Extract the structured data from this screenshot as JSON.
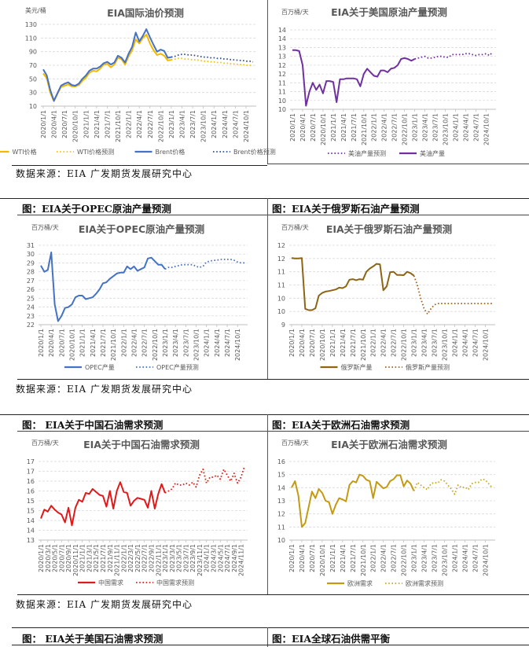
{
  "source_note": "数据来源：EIA  广发期货发展研究中心",
  "sections": [
    {
      "left_header": "图：EIA关于OPEC原油产量预测",
      "right_header": "图：EIA关于俄罗斯石油产量预测"
    },
    {
      "left_header": "图：  EIA关于中国石油需求预测",
      "right_header": "图：EIA关于欧洲石油需求预测"
    },
    {
      "left_header": "图：  EIA关于美国石油需求预测",
      "right_header": "图：EIA全球石油供需平衡"
    }
  ],
  "chart_data": [
    {
      "type": "line",
      "title": "EIA国际油价预测",
      "unit": "美元/桶",
      "ylim": [
        10,
        130
      ],
      "yticks": [
        "10",
        "30",
        "50",
        "70",
        "90",
        "110",
        "130"
      ],
      "frequency": "monthly",
      "grid": true,
      "legend": "bottom",
      "xticks": [
        "2020/1/1",
        "2020/4/1",
        "2020/7/1",
        "2020/10/1",
        "2021/1/1",
        "2021/4/1",
        "2021/7/1",
        "2021/10/1",
        "2022/1/1",
        "2022/4/1",
        "2022/7/1",
        "2022/10/1",
        "2023/1/1",
        "2023/4/1",
        "2023/7/1",
        "2023/10/1",
        "2024/1/1",
        "2024/4/1",
        "2024/7/1",
        "2024/10/1"
      ],
      "series": [
        {
          "name": "WTI价格",
          "start": "2020/1",
          "style": "solid",
          "color": "#f5b800",
          "values": [
            58,
            51,
            29,
            17,
            28,
            38,
            40,
            42,
            39,
            39,
            41,
            47,
            52,
            59,
            62,
            61,
            65,
            71,
            72,
            67,
            71,
            81,
            79,
            71,
            83,
            92,
            108,
            102,
            110,
            115,
            102,
            92,
            85,
            87,
            84,
            77,
            78
          ]
        },
        {
          "name": "WTI价格预测",
          "start": "2023/1",
          "style": "dotted",
          "color": "#f5c400",
          "values": [
            78,
            79,
            80,
            80,
            79,
            79,
            78,
            78,
            77,
            76,
            76,
            75,
            75,
            74,
            74,
            73,
            73,
            72,
            72,
            71,
            71,
            70,
            70,
            69
          ]
        },
        {
          "name": "Brent价格",
          "start": "2020/1",
          "style": "solid",
          "color": "#4472c4",
          "values": [
            64,
            55,
            33,
            18,
            29,
            40,
            43,
            45,
            41,
            40,
            43,
            50,
            55,
            62,
            65,
            65,
            68,
            73,
            75,
            71,
            74,
            84,
            81,
            74,
            87,
            97,
            118,
            105,
            113,
            123,
            111,
            100,
            90,
            93,
            91,
            81,
            82
          ]
        },
        {
          "name": "Brent价格预测",
          "start": "2023/1",
          "style": "dotted",
          "color": "#2f4f8f",
          "values": [
            82,
            83,
            85,
            86,
            86,
            85,
            85,
            84,
            83,
            82,
            82,
            81,
            81,
            80,
            80,
            79,
            79,
            78,
            78,
            77,
            77,
            76,
            76,
            75
          ]
        }
      ]
    },
    {
      "type": "line",
      "title": "EIA关于美国原油产量预测",
      "unit": "百万桶/天",
      "ylim": [
        9.5,
        14
      ],
      "yticks": [
        "10",
        "10",
        "11",
        "11",
        "12",
        "12",
        "13",
        "13",
        "14",
        "14"
      ],
      "frequency": "monthly",
      "grid": true,
      "legend": "bottom",
      "xticks": [
        "2020/1/1",
        "2020/4/1",
        "2020/7/1",
        "2020/10/1",
        "2021/1/1",
        "2021/4/1",
        "2021/7/1",
        "2021/10/1",
        "2022/1/1",
        "2022/4/1",
        "2022/7/1",
        "2022/10/1",
        "2023/1/1",
        "2023/4/1",
        "2023/7/1",
        "2023/10/1",
        "2024/1/1",
        "2024/4/1",
        "2024/7/1",
        "2024/10/1"
      ],
      "series": [
        {
          "name": "美油产量预测",
          "start": "2023/1",
          "style": "dotted",
          "color": "#7030a0",
          "values": [
            12.35,
            12.4,
            12.45,
            12.5,
            12.4,
            12.4,
            12.45,
            12.5,
            12.5,
            12.45,
            12.45,
            12.6,
            12.6,
            12.6,
            12.6,
            12.65,
            12.65,
            12.6,
            12.55,
            12.6,
            12.6,
            12.65,
            12.55,
            12.75
          ]
        },
        {
          "name": "美油产量",
          "start": "2020/1",
          "style": "solid",
          "color": "#7030a0",
          "values": [
            12.85,
            12.85,
            12.8,
            12.0,
            9.7,
            10.5,
            11.0,
            10.6,
            10.9,
            10.4,
            11.1,
            11.1,
            11.05,
            9.9,
            11.2,
            11.2,
            11.25,
            11.25,
            11.25,
            11.2,
            10.8,
            11.5,
            11.8,
            11.6,
            11.4,
            11.35,
            11.7,
            11.7,
            11.6,
            11.8,
            11.85,
            12.0,
            12.35,
            12.4,
            12.35,
            12.25,
            12.35
          ]
        }
      ]
    },
    {
      "type": "line",
      "title": "EIA关于OPEC原油产量预测",
      "unit": "百万桶/天",
      "ylim": [
        22,
        31
      ],
      "yticks": [
        "22",
        "23",
        "24",
        "25",
        "26",
        "27",
        "28",
        "29",
        "30",
        "31"
      ],
      "frequency": "monthly",
      "grid": true,
      "legend": "bottom",
      "xticks": [
        "2020/1/1",
        "2020/4/1",
        "2020/7/1",
        "2020/10/1",
        "2021/1/1",
        "2021/4/1",
        "2021/7/1",
        "2021/10/1",
        "2022/1/1",
        "2022/4/1",
        "2022/7/1",
        "2022/10/1",
        "2023/1/1",
        "2023/4/1",
        "2023/7/1",
        "2023/10/1",
        "2024/1/1",
        "2024/4/1",
        "2024/7/1",
        "2024/10/1"
      ],
      "series": [
        {
          "name": "OPEC产量",
          "start": "2020/1",
          "style": "solid",
          "color": "#4472c4",
          "values": [
            28.7,
            28.0,
            28.2,
            30.2,
            24.3,
            22.4,
            23.0,
            23.9,
            24.0,
            24.3,
            25.1,
            25.3,
            25.3,
            24.9,
            25.0,
            25.1,
            25.5,
            26.0,
            26.7,
            26.8,
            27.2,
            27.5,
            27.8,
            27.9,
            27.9,
            28.6,
            28.3,
            28.6,
            28.1,
            28.3,
            28.5,
            29.5,
            29.6,
            29.2,
            28.8,
            28.8,
            28.3
          ]
        },
        {
          "name": "OPEC产量预测",
          "start": "2023/1",
          "style": "dotted",
          "color": "#4472c4",
          "values": [
            28.3,
            28.5,
            28.5,
            28.6,
            28.7,
            28.8,
            28.8,
            28.8,
            28.8,
            28.6,
            28.5,
            28.6,
            29.1,
            29.2,
            29.3,
            29.3,
            29.4,
            29.4,
            29.4,
            29.4,
            29.3,
            29.1,
            29.0,
            29.0
          ]
        }
      ]
    },
    {
      "type": "line",
      "title": "EIA关于俄罗斯石油产量预测",
      "unit": "百万桶/天",
      "ylim": [
        9,
        12
      ],
      "yticks": [
        "9",
        "10",
        "10",
        "11",
        "11",
        "12",
        "12"
      ],
      "frequency": "monthly",
      "grid": true,
      "legend": "bottom",
      "xticks": [
        "2020/1/1",
        "2020/4/1",
        "2020/7/1",
        "2020/10/1",
        "2021/1/1",
        "2021/4/1",
        "2021/7/1",
        "2021/10/1",
        "2022/1/1",
        "2022/4/1",
        "2022/7/1",
        "2022/10/1",
        "2023/1/1",
        "2023/4/1",
        "2023/7/1",
        "2023/10/1",
        "2024/1/1",
        "2024/4/1",
        "2024/7/1",
        "2024/10/1"
      ],
      "series": [
        {
          "name": "俄罗斯产量",
          "start": "2020/1",
          "style": "solid",
          "color": "#8c6515",
          "values": [
            11.52,
            11.5,
            11.5,
            11.52,
            9.6,
            9.55,
            9.55,
            9.62,
            10.1,
            10.2,
            10.25,
            10.27,
            10.3,
            10.33,
            10.4,
            10.38,
            10.45,
            10.7,
            10.72,
            10.68,
            10.72,
            10.7,
            11.0,
            11.12,
            11.2,
            11.3,
            11.28,
            10.3,
            10.45,
            10.98,
            11.0,
            10.88,
            10.88,
            10.87,
            11.0,
            10.95,
            10.85
          ]
        },
        {
          "name": "俄罗斯产量预测",
          "start": "2023/1",
          "style": "dotted",
          "color": "#a5601a",
          "values": [
            10.85,
            10.5,
            10.0,
            9.6,
            9.4,
            9.6,
            9.75,
            9.8,
            9.8,
            9.8,
            9.8,
            9.8,
            9.8,
            9.8,
            9.8,
            9.8,
            9.8,
            9.8,
            9.8,
            9.8,
            9.8,
            9.8,
            9.8,
            9.8
          ]
        }
      ]
    },
    {
      "type": "line",
      "title": "EIA关于中国石油需求预测",
      "unit": "百万桶/天",
      "ylim": [
        13,
        17
      ],
      "yticks": [
        "13",
        "14",
        "14",
        "15",
        "15",
        "16",
        "16",
        "17",
        "17"
      ],
      "frequency": "monthly",
      "grid": true,
      "legend": "bottom",
      "xticks": [
        "2020/1/1",
        "2020/3/1",
        "2020/5/1",
        "2020/7/1",
        "2020/9/1",
        "2020/11/1",
        "2021/1/1",
        "2021/3/1",
        "2021/5/1",
        "2021/7/1",
        "2021/9/1",
        "2021/11/1",
        "2022/1/1",
        "2022/3/1",
        "2022/5/1",
        "2022/7/1",
        "2022/9/1",
        "2022/11/1",
        "2023/1/1",
        "2023/3/1",
        "2023/5/1",
        "2023/7/1",
        "2023/9/1",
        "2023/11/1",
        "2024/1/1",
        "2024/3/1",
        "2024/5/1",
        "2024/7/1",
        "2024/9/1",
        "2024/11/1"
      ],
      "series": [
        {
          "name": "中国需求",
          "start": "2020/1",
          "style": "solid",
          "color": "#e01a1a",
          "values": [
            14.1,
            14.55,
            14.45,
            14.75,
            14.55,
            14.4,
            14.3,
            13.9,
            14.65,
            13.75,
            14.65,
            15.05,
            14.95,
            15.4,
            15.35,
            15.6,
            15.45,
            15.3,
            15.25,
            14.7,
            15.5,
            14.6,
            15.5,
            15.95,
            15.45,
            15.4,
            14.75,
            15.0,
            15.15,
            15.1,
            15.05,
            14.65,
            15.5,
            14.6,
            15.35,
            15.85,
            15.4
          ]
        },
        {
          "name": "中国需求预测",
          "start": "2023/1",
          "style": "dotted",
          "color": "#e01a1a",
          "values": [
            15.4,
            15.5,
            15.6,
            15.9,
            15.8,
            15.8,
            15.9,
            15.8,
            15.95,
            15.7,
            16.3,
            16.6,
            15.9,
            16.2,
            16.2,
            16.3,
            16.1,
            16.6,
            16.3,
            16.0,
            16.4,
            15.9,
            16.2,
            16.75
          ]
        }
      ]
    },
    {
      "type": "line",
      "title": "EIA关于欧洲石油需求预测",
      "unit": "百万桶/天",
      "ylim": [
        10,
        16
      ],
      "yticks": [
        "10",
        "11",
        "12",
        "13",
        "14",
        "15",
        "16"
      ],
      "frequency": "monthly",
      "grid": true,
      "legend": "bottom",
      "xticks": [
        "2020/1/1",
        "2020/4/1",
        "2020/7/1",
        "2020/10/1",
        "2021/1/1",
        "2021/4/1",
        "2021/7/1",
        "2021/10/1",
        "2022/1/1",
        "2022/4/1",
        "2022/7/1",
        "2022/10/1",
        "2023/1/1",
        "2023/4/1",
        "2023/7/1",
        "2023/10/1",
        "2024/1/1",
        "2024/4/1",
        "2024/7/1",
        "2024/10/1"
      ],
      "series": [
        {
          "name": "欧洲需求",
          "start": "2020/1",
          "style": "solid",
          "color": "#c49a12",
          "values": [
            14.0,
            14.5,
            13.4,
            11.0,
            11.3,
            12.5,
            13.7,
            13.2,
            13.9,
            13.6,
            13.0,
            12.9,
            12.0,
            12.7,
            13.2,
            13.1,
            12.95,
            14.2,
            14.5,
            14.4,
            15.0,
            14.9,
            14.6,
            14.5,
            13.2,
            14.45,
            14.2,
            13.95,
            14.05,
            14.5,
            14.65,
            14.95,
            14.95,
            14.1,
            14.55,
            14.3,
            13.75
          ]
        },
        {
          "name": "欧洲需求预测",
          "start": "2023/1",
          "style": "dotted",
          "color": "#c9a81a",
          "values": [
            13.75,
            14.4,
            14.2,
            14.0,
            13.85,
            14.3,
            14.4,
            14.35,
            14.6,
            14.5,
            14.2,
            13.9,
            13.5,
            14.2,
            14.0,
            14.05,
            13.85,
            14.3,
            14.4,
            14.4,
            14.65,
            14.6,
            14.3,
            14.0
          ]
        }
      ]
    }
  ]
}
